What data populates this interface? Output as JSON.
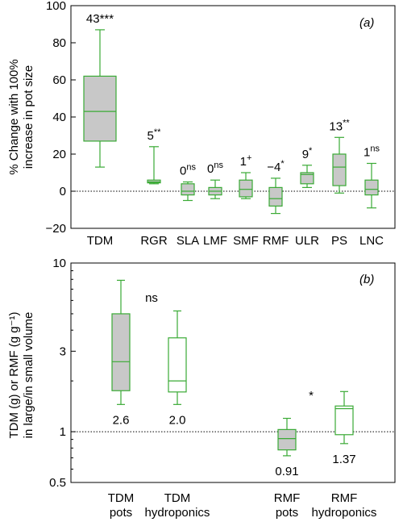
{
  "style": {
    "box_stroke": "#3aaa35",
    "box_fill_grey": "#c8c8c8",
    "box_fill_white": "#ffffff",
    "axis_color": "#000000"
  },
  "chart_data": [
    {
      "type": "box",
      "panel": "(a)",
      "panel_label_letter": "a",
      "ylabel_line1": "% Change with 100%",
      "ylabel_line2": "increase in pot size",
      "ylim": [
        -20,
        100
      ],
      "yticks": [
        -20,
        0,
        20,
        40,
        60,
        80,
        100
      ],
      "yticks_labels": [
        "−20",
        "0",
        "20",
        "40",
        "60",
        "80",
        "100"
      ],
      "reference_line": 0,
      "categories": [
        "TDM",
        "RGR",
        "SLA",
        "LMF",
        "SMF",
        "RMF",
        "ULR",
        "PS",
        "LNC"
      ],
      "boxes": [
        {
          "min": 13,
          "q1": 27,
          "median": 43,
          "q3": 62,
          "max": 87,
          "fill": "grey",
          "annotation": "43",
          "sig": "***",
          "sig_pos": "inline"
        },
        {
          "min": 4,
          "q1": 4.5,
          "median": 5,
          "q3": 6,
          "max": 24,
          "fill": "grey",
          "annotation": "5",
          "sig": "**",
          "sig_pos": "sup"
        },
        {
          "min": -5,
          "q1": -2,
          "median": 0,
          "q3": 4,
          "max": 5,
          "fill": "grey",
          "annotation": "0",
          "sig": "ns",
          "sig_pos": "sup"
        },
        {
          "min": -4,
          "q1": -2,
          "median": 0,
          "q3": 2,
          "max": 6,
          "fill": "grey",
          "annotation": "0",
          "sig": "ns",
          "sig_pos": "sup"
        },
        {
          "min": -4,
          "q1": -3,
          "median": 1,
          "q3": 6,
          "max": 10,
          "fill": "grey",
          "annotation": "1",
          "sig": "+",
          "sig_pos": "sup"
        },
        {
          "min": -12,
          "q1": -8,
          "median": -4,
          "q3": 2,
          "max": 7,
          "fill": "grey",
          "annotation": "−4",
          "sig": "*",
          "sig_pos": "sup"
        },
        {
          "min": 2,
          "q1": 4,
          "median": 9,
          "q3": 10,
          "max": 14,
          "fill": "grey",
          "annotation": "9",
          "sig": "*",
          "sig_pos": "sup"
        },
        {
          "min": -1,
          "q1": 3,
          "median": 13,
          "q3": 20,
          "max": 29,
          "fill": "grey",
          "annotation": "13",
          "sig": "**",
          "sig_pos": "sup"
        },
        {
          "min": -9,
          "q1": -2,
          "median": 1,
          "q3": 6,
          "max": 15,
          "fill": "grey",
          "annotation": "1",
          "sig": "ns",
          "sig_pos": "sup"
        }
      ]
    },
    {
      "type": "box",
      "panel": "(b)",
      "panel_label_letter": "b",
      "ylabel_line1": "TDM (g) or RMF (g g⁻¹)",
      "ylabel_line2": "in large/in small volume",
      "yscale": "log",
      "ylim": [
        0.5,
        10
      ],
      "yticks": [
        0.5,
        1,
        3,
        10
      ],
      "yticks_labels": [
        "0.5",
        "1",
        "3",
        "10"
      ],
      "reference_line": 1,
      "categories": [
        {
          "line1": "TDM",
          "line2": "pots"
        },
        {
          "line1": "TDM",
          "line2": "hydroponics"
        },
        {
          "line1": "RMF",
          "line2": "pots"
        },
        {
          "line1": "RMF",
          "line2": "hydroponics"
        }
      ],
      "boxes": [
        {
          "min": 1.45,
          "q1": 1.75,
          "median": 2.6,
          "q3": 5.0,
          "max": 7.9,
          "fill": "grey",
          "annotation": "2.6"
        },
        {
          "min": 1.45,
          "q1": 1.72,
          "median": 2.0,
          "q3": 3.6,
          "max": 5.2,
          "fill": "white",
          "annotation": "2.0"
        },
        {
          "min": 0.72,
          "q1": 0.78,
          "median": 0.91,
          "q3": 1.03,
          "max": 1.2,
          "fill": "grey",
          "annotation": "0.91"
        },
        {
          "min": 0.85,
          "q1": 0.96,
          "median": 1.37,
          "q3": 1.42,
          "max": 1.73,
          "fill": "white",
          "annotation": "1.37"
        }
      ],
      "significance": [
        {
          "between": "TDM",
          "label": "ns"
        },
        {
          "between": "RMF",
          "label": "*"
        }
      ]
    }
  ]
}
